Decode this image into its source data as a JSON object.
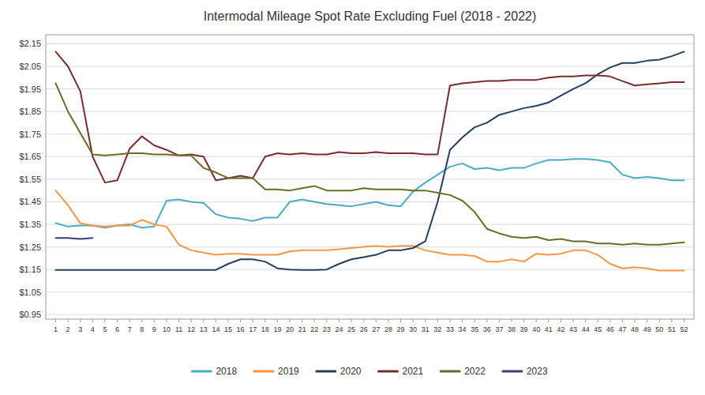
{
  "chart_data": {
    "type": "line",
    "title": "Intermodal Mileage Spot Rate Excluding Fuel (2018 - 2022)",
    "x": [
      1,
      2,
      3,
      4,
      5,
      6,
      7,
      8,
      9,
      10,
      11,
      12,
      13,
      14,
      15,
      16,
      17,
      18,
      19,
      20,
      21,
      22,
      23,
      24,
      25,
      26,
      27,
      28,
      29,
      30,
      31,
      32,
      33,
      34,
      35,
      36,
      37,
      38,
      39,
      40,
      41,
      42,
      43,
      44,
      45,
      46,
      47,
      48,
      49,
      50,
      51,
      52
    ],
    "xlim": [
      0.2,
      52.8
    ],
    "xticks": [
      1,
      2,
      3,
      4,
      5,
      6,
      7,
      8,
      9,
      10,
      11,
      12,
      13,
      14,
      15,
      16,
      17,
      18,
      19,
      20,
      21,
      22,
      23,
      24,
      25,
      26,
      27,
      28,
      29,
      30,
      31,
      32,
      33,
      34,
      35,
      36,
      37,
      38,
      39,
      40,
      41,
      42,
      43,
      44,
      45,
      46,
      47,
      48,
      49,
      50,
      51,
      52
    ],
    "ylim": [
      0.93,
      2.19
    ],
    "yticks": [
      {
        "value": 0.95,
        "label": "$0.95"
      },
      {
        "value": 1.05,
        "label": "$1.05"
      },
      {
        "value": 1.15,
        "label": "$1.15"
      },
      {
        "value": 1.25,
        "label": "$1.25"
      },
      {
        "value": 1.35,
        "label": "$1.35"
      },
      {
        "value": 1.45,
        "label": "$1.45"
      },
      {
        "value": 1.55,
        "label": "$1.55"
      },
      {
        "value": 1.65,
        "label": "$1.65"
      },
      {
        "value": 1.75,
        "label": "$1.75"
      },
      {
        "value": 1.85,
        "label": "$1.85"
      },
      {
        "value": 1.95,
        "label": "$1.95"
      },
      {
        "value": 2.05,
        "label": "$2.05"
      },
      {
        "value": 2.15,
        "label": "$2.15"
      }
    ],
    "grid": true,
    "legend": "bottom",
    "series": [
      {
        "name": "2018",
        "color": "#4BACC6",
        "values": [
          1.355,
          1.34,
          1.345,
          1.345,
          1.335,
          1.345,
          1.35,
          1.335,
          1.34,
          1.455,
          1.46,
          1.45,
          1.445,
          1.395,
          1.38,
          1.375,
          1.365,
          1.38,
          1.38,
          1.45,
          1.46,
          1.45,
          1.44,
          1.435,
          1.43,
          1.44,
          1.45,
          1.435,
          1.43,
          1.495,
          1.535,
          1.57,
          1.605,
          1.62,
          1.595,
          1.6,
          1.59,
          1.6,
          1.6,
          1.62,
          1.635,
          1.635,
          1.64,
          1.64,
          1.635,
          1.625,
          1.57,
          1.555,
          1.56,
          1.555,
          1.545,
          1.545
        ]
      },
      {
        "name": "2019",
        "color": "#F79646",
        "values": [
          1.5,
          1.435,
          1.355,
          1.345,
          1.34,
          1.345,
          1.345,
          1.37,
          1.35,
          1.34,
          1.26,
          1.235,
          1.225,
          1.215,
          1.22,
          1.22,
          1.215,
          1.215,
          1.215,
          1.23,
          1.235,
          1.235,
          1.235,
          1.24,
          1.245,
          1.25,
          1.255,
          1.25,
          1.255,
          1.255,
          1.235,
          1.225,
          1.215,
          1.215,
          1.21,
          1.185,
          1.185,
          1.195,
          1.185,
          1.22,
          1.215,
          1.22,
          1.235,
          1.235,
          1.215,
          1.175,
          1.155,
          1.16,
          1.155,
          1.145,
          1.145,
          1.145
        ]
      },
      {
        "name": "2020",
        "color": "#243F60",
        "values": [
          1.148,
          1.148,
          1.148,
          1.148,
          1.148,
          1.148,
          1.148,
          1.148,
          1.148,
          1.148,
          1.148,
          1.148,
          1.148,
          1.148,
          1.175,
          1.195,
          1.195,
          1.185,
          1.155,
          1.15,
          1.148,
          1.148,
          1.15,
          1.175,
          1.195,
          1.205,
          1.215,
          1.235,
          1.235,
          1.245,
          1.275,
          1.45,
          1.68,
          1.735,
          1.78,
          1.8,
          1.835,
          1.85,
          1.865,
          1.875,
          1.89,
          1.92,
          1.95,
          1.975,
          2.015,
          2.045,
          2.065,
          2.065,
          2.075,
          2.08,
          2.095,
          2.115
        ]
      },
      {
        "name": "2021",
        "color": "#7B2C2C",
        "values": [
          2.115,
          2.05,
          1.94,
          1.65,
          1.535,
          1.545,
          1.685,
          1.74,
          1.7,
          1.68,
          1.655,
          1.66,
          1.65,
          1.545,
          1.555,
          1.565,
          1.555,
          1.65,
          1.665,
          1.66,
          1.665,
          1.66,
          1.66,
          1.67,
          1.665,
          1.665,
          1.67,
          1.665,
          1.665,
          1.665,
          1.66,
          1.66,
          1.965,
          1.975,
          1.98,
          1.985,
          1.985,
          1.99,
          1.99,
          1.99,
          2.0,
          2.005,
          2.005,
          2.01,
          2.01,
          2.005,
          1.985,
          1.965,
          1.97,
          1.975,
          1.98,
          1.98
        ]
      },
      {
        "name": "2022",
        "color": "#6B6B2A",
        "values": [
          1.975,
          1.85,
          1.755,
          1.66,
          1.655,
          1.66,
          1.665,
          1.665,
          1.66,
          1.66,
          1.655,
          1.655,
          1.6,
          1.58,
          1.555,
          1.555,
          1.555,
          1.505,
          1.505,
          1.5,
          1.51,
          1.52,
          1.5,
          1.5,
          1.5,
          1.51,
          1.505,
          1.505,
          1.505,
          1.5,
          1.5,
          1.49,
          1.48,
          1.455,
          1.405,
          1.33,
          1.31,
          1.295,
          1.29,
          1.295,
          1.28,
          1.285,
          1.275,
          1.275,
          1.265,
          1.265,
          1.26,
          1.265,
          1.26,
          1.26,
          1.265,
          1.27
        ]
      },
      {
        "name": "2023",
        "color": "#403977",
        "values": [
          1.29,
          1.29,
          1.285,
          1.29,
          null,
          null,
          null,
          null,
          null,
          null,
          null,
          null,
          null,
          null,
          null,
          null,
          null,
          null,
          null,
          null,
          null,
          null,
          null,
          null,
          null,
          null,
          null,
          null,
          null,
          null,
          null,
          null,
          null,
          null,
          null,
          null,
          null,
          null,
          null,
          null,
          null,
          null,
          null,
          null,
          null,
          null,
          null,
          null,
          null,
          null,
          null,
          null
        ]
      }
    ]
  }
}
